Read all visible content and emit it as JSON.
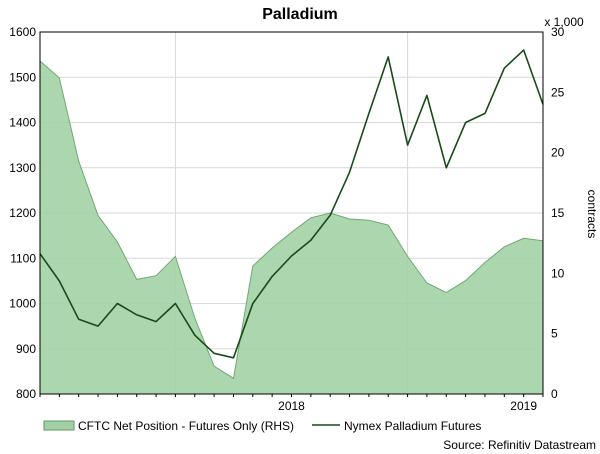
{
  "chart_data": {
    "type": "area",
    "title": "Palladium",
    "y_left": {
      "ylim": [
        800,
        1600
      ],
      "ticks": [
        800,
        900,
        1000,
        1100,
        1200,
        1300,
        1400,
        1500,
        1600
      ]
    },
    "y_right": {
      "ylim": [
        0,
        30
      ],
      "ticks": [
        0,
        5,
        10,
        15,
        20,
        25,
        30
      ],
      "multiplier": "x 1,000",
      "label": "contracts"
    },
    "x_axis": {
      "range": [
        "2017-06",
        "2019-08"
      ],
      "tick_labels": [
        "2018",
        "2019"
      ]
    },
    "grid": true,
    "legend_position": "bottom",
    "series": [
      {
        "name": "CFTC Net Position - Futures Only (RHS)",
        "type": "area",
        "axis": "right",
        "color": "#a3d1a5",
        "x": [
          "2017-06",
          "2017-07",
          "2017-08",
          "2017-09",
          "2017-10",
          "2017-11",
          "2017-12",
          "2018-01",
          "2018-02",
          "2018-03",
          "2018-04",
          "2018-05",
          "2018-06",
          "2018-07",
          "2018-08",
          "2018-09",
          "2018-10",
          "2018-11",
          "2018-12",
          "2019-01",
          "2019-02",
          "2019-03",
          "2019-04",
          "2019-05",
          "2019-06",
          "2019-07",
          "2019-08"
        ],
        "values": [
          27.6,
          26.2,
          19.3,
          14.8,
          12.6,
          9.5,
          9.8,
          11.4,
          6.3,
          2.3,
          1.3,
          10.6,
          12.1,
          13.4,
          14.6,
          15.0,
          14.5,
          14.4,
          14.0,
          11.4,
          9.2,
          8.4,
          9.4,
          10.9,
          12.2,
          12.9,
          12.7
        ]
      },
      {
        "name": "Nymex Palladium Futures",
        "type": "line",
        "axis": "left",
        "color": "#1a4a1a",
        "x": [
          "2017-06",
          "2017-07",
          "2017-08",
          "2017-09",
          "2017-10",
          "2017-11",
          "2017-12",
          "2018-01",
          "2018-02",
          "2018-03",
          "2018-04",
          "2018-05",
          "2018-06",
          "2018-07",
          "2018-08",
          "2018-09",
          "2018-10",
          "2018-11",
          "2018-12",
          "2019-01",
          "2019-02",
          "2019-03",
          "2019-04",
          "2019-05",
          "2019-06",
          "2019-07",
          "2019-08"
        ],
        "values": [
          1110,
          1050,
          965,
          950,
          1000,
          975,
          960,
          1000,
          930,
          890,
          880,
          1000,
          1060,
          1105,
          1140,
          1195,
          1290,
          1420,
          1545,
          1350,
          1460,
          1300,
          1400,
          1420,
          1520,
          1560,
          1440
        ]
      }
    ],
    "source": "Source: Refinitiv Datastream"
  }
}
